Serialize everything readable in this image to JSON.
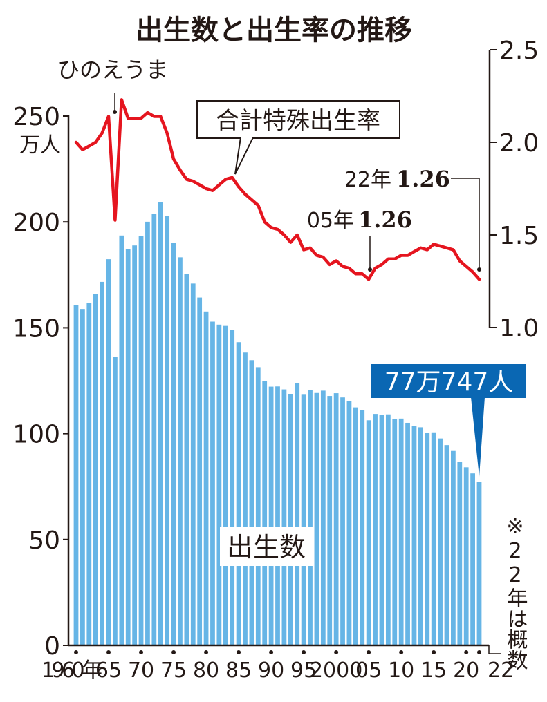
{
  "chart_data": {
    "type": "bar+line",
    "title": "出生数と出生率の推移",
    "left_axis": {
      "unit_label": "万人",
      "ticks": [
        0,
        50,
        100,
        150,
        200,
        250
      ],
      "ylim": [
        0,
        250
      ]
    },
    "right_axis": {
      "ticks": [
        "1.0",
        "1.5",
        "2.0",
        "2.5"
      ],
      "ylim": [
        1.0,
        2.5
      ]
    },
    "x_tick_labels": [
      {
        "year": 1960,
        "label": "1960年"
      },
      {
        "year": 1965,
        "label": "65"
      },
      {
        "year": 1970,
        "label": "70"
      },
      {
        "year": 1975,
        "label": "75"
      },
      {
        "year": 1980,
        "label": "80"
      },
      {
        "year": 1985,
        "label": "85"
      },
      {
        "year": 1990,
        "label": "90"
      },
      {
        "year": 1995,
        "label": "95"
      },
      {
        "year": 2000,
        "label": "2000"
      },
      {
        "year": 2005,
        "label": "05"
      },
      {
        "year": 2010,
        "label": "10"
      },
      {
        "year": 2015,
        "label": "15"
      },
      {
        "year": 2020,
        "label": "20"
      },
      {
        "year": 2022,
        "label": "22"
      }
    ],
    "years": [
      1960,
      1961,
      1962,
      1963,
      1964,
      1965,
      1966,
      1967,
      1968,
      1969,
      1970,
      1971,
      1972,
      1973,
      1974,
      1975,
      1976,
      1977,
      1978,
      1979,
      1980,
      1981,
      1982,
      1983,
      1984,
      1985,
      1986,
      1987,
      1988,
      1989,
      1990,
      1991,
      1992,
      1993,
      1994,
      1995,
      1996,
      1997,
      1998,
      1999,
      2000,
      2001,
      2002,
      2003,
      2004,
      2005,
      2006,
      2007,
      2008,
      2009,
      2010,
      2011,
      2012,
      2013,
      2014,
      2015,
      2016,
      2017,
      2018,
      2019,
      2020,
      2021,
      2022
    ],
    "series": [
      {
        "name": "出生数",
        "axis": "left",
        "color": "#66b5e6",
        "values": [
          160.6,
          158.9,
          161.8,
          166.0,
          171.7,
          182.4,
          136.1,
          193.6,
          187.2,
          188.9,
          193.4,
          200.1,
          203.9,
          209.2,
          203.0,
          190.1,
          183.3,
          175.5,
          170.9,
          164.3,
          157.7,
          152.9,
          151.5,
          150.9,
          149.0,
          143.2,
          138.3,
          134.7,
          131.4,
          124.7,
          122.2,
          122.3,
          120.9,
          118.8,
          123.8,
          118.7,
          120.7,
          119.2,
          120.3,
          117.8,
          119.1,
          117.1,
          115.4,
          112.4,
          111.1,
          106.3,
          109.3,
          109.0,
          109.1,
          107.0,
          107.1,
          105.1,
          103.7,
          103.0,
          100.4,
          100.6,
          97.7,
          94.6,
          91.8,
          86.5,
          84.1,
          81.2,
          77.1
        ]
      },
      {
        "name": "合計特殊出生率",
        "axis": "right",
        "color": "#e5151f",
        "values": [
          2.0,
          1.96,
          1.98,
          2.0,
          2.05,
          2.14,
          1.58,
          2.23,
          2.13,
          2.13,
          2.13,
          2.16,
          2.14,
          2.14,
          2.05,
          1.91,
          1.85,
          1.8,
          1.79,
          1.77,
          1.75,
          1.74,
          1.77,
          1.8,
          1.81,
          1.76,
          1.72,
          1.69,
          1.66,
          1.57,
          1.54,
          1.53,
          1.5,
          1.46,
          1.5,
          1.42,
          1.43,
          1.39,
          1.38,
          1.34,
          1.36,
          1.33,
          1.32,
          1.29,
          1.29,
          1.26,
          1.32,
          1.34,
          1.37,
          1.37,
          1.39,
          1.39,
          1.41,
          1.43,
          1.42,
          1.45,
          1.44,
          1.43,
          1.42,
          1.36,
          1.33,
          1.3,
          1.26
        ]
      }
    ],
    "annotations": {
      "hinoeuma": "ひのえうま",
      "rate_label": "合計特殊出生率",
      "y2005_prefix": "05年",
      "y2005_value": "1.26",
      "y2022_prefix": "22年",
      "y2022_value": "1.26",
      "births_2022": "77万747人",
      "births_label": "出生数",
      "note": "※22年は概数"
    },
    "colors": {
      "bar": "#66b5e6",
      "line": "#e5151f",
      "highlight_box": "#0a67b3",
      "axis": "#231815"
    }
  }
}
